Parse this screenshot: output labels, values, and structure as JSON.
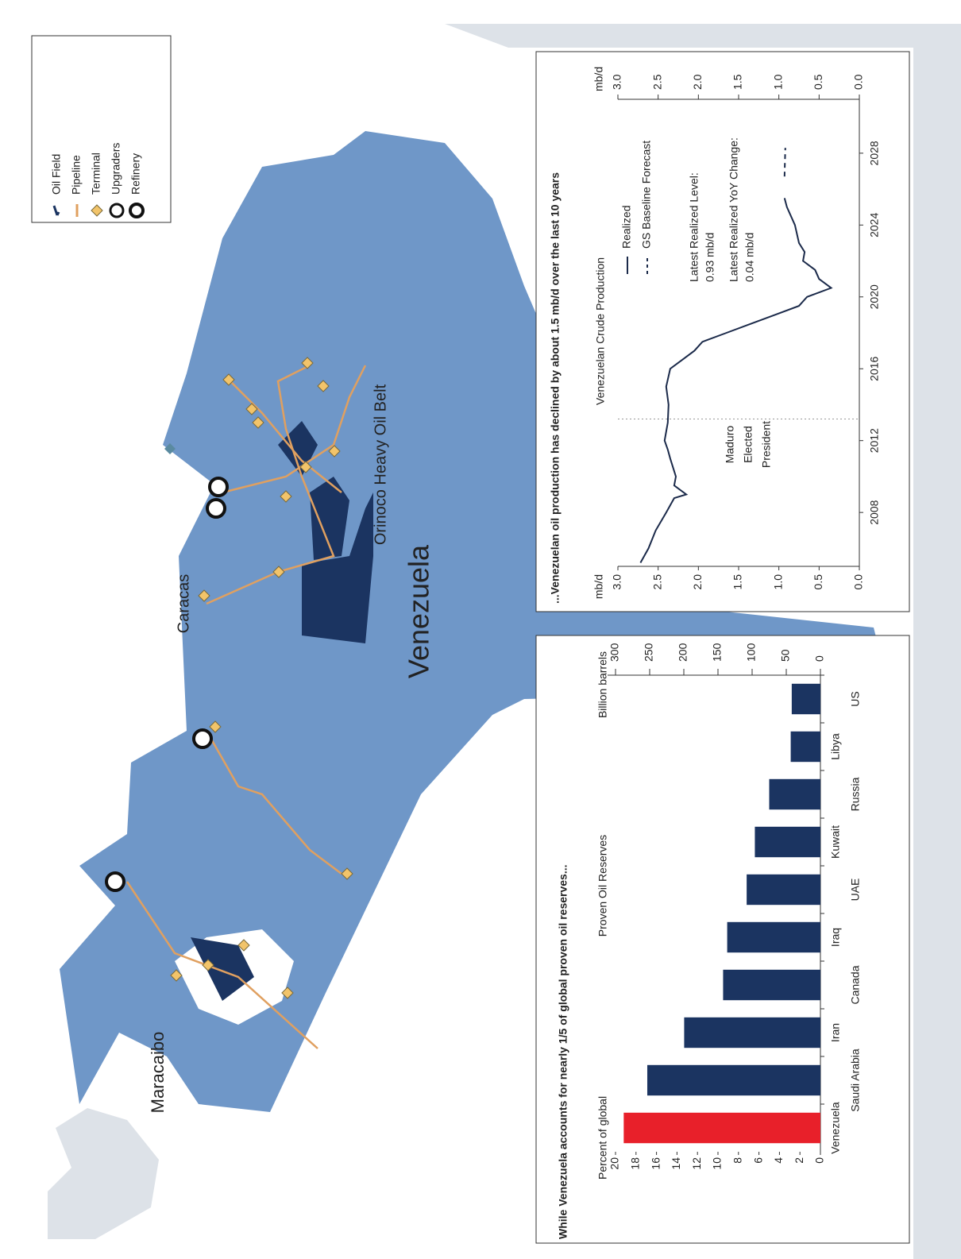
{
  "map": {
    "labels": [
      "Maracaibo",
      "Caracas",
      "Orinoco Heavy Oil Belt",
      "Venezuela"
    ],
    "legend": [
      "Oil Field",
      "Pipeline",
      "Terminal",
      "Upgraders",
      "Refinery"
    ]
  },
  "chart_data": [
    {
      "type": "bar",
      "title": "While Venezuela accounts for nearly 1/5 of global proven oil reserves...",
      "subtitle": "Proven Oil Reserves",
      "y_label": "Percent of global",
      "y2_label": "Billion barrels",
      "categories": [
        "Venezuela",
        "Saudi Arabia",
        "Iran",
        "Canada",
        "Iraq",
        "UAE",
        "Kuwait",
        "Russia",
        "Libya",
        "US"
      ],
      "values": [
        19.2,
        16.9,
        13.3,
        9.5,
        9.1,
        7.2,
        6.4,
        5.0,
        2.9,
        2.8
      ],
      "colors": [
        "#e8202a",
        "#1b3461",
        "#1b3461",
        "#1b3461",
        "#1b3461",
        "#1b3461",
        "#1b3461",
        "#1b3461",
        "#1b3461",
        "#1b3461"
      ],
      "ylim": [
        0,
        20
      ],
      "yticks": [
        0,
        2,
        4,
        6,
        8,
        10,
        12,
        14,
        16,
        18,
        20
      ],
      "y2lim": [
        0,
        300
      ],
      "y2ticks": [
        0,
        50,
        100,
        150,
        200,
        250,
        300
      ]
    },
    {
      "type": "line",
      "title": "...Venezuelan oil production has declined by about 1.5 mb/d over the last 10 years",
      "subtitle": "Venezuelan Crude Production",
      "y_label": "mb/d",
      "y2_label": "mb/d",
      "xlim": [
        2005,
        2031
      ],
      "xticks": [
        2008,
        2012,
        2016,
        2020,
        2024,
        2028
      ],
      "ylim": [
        0,
        3
      ],
      "yticks": [
        {
          "value": 0,
          "label": "0.0"
        },
        {
          "value": 0.5,
          "label": "0.5"
        },
        {
          "value": 1,
          "label": "1.0"
        },
        {
          "value": 1.5,
          "label": "1.5"
        },
        {
          "value": 2,
          "label": "2.0"
        },
        {
          "value": 2.5,
          "label": "2.5"
        },
        {
          "value": 3,
          "label": "3.0"
        }
      ],
      "y2lim": [
        0,
        3
      ],
      "y2ticks": [
        {
          "value": 0,
          "label": "0.0"
        },
        {
          "value": 0.5,
          "label": "0.5"
        },
        {
          "value": 1,
          "label": "1.0"
        },
        {
          "value": 1.5,
          "label": "1.5"
        },
        {
          "value": 2,
          "label": "2.0"
        },
        {
          "value": 2.5,
          "label": "2.5"
        },
        {
          "value": 3,
          "label": "3.0"
        }
      ],
      "series": [
        {
          "name": "Realized",
          "color": "#1b2a4a",
          "dash": false,
          "x": [
            2005.2,
            2006,
            2007,
            2008,
            2008.8,
            2009,
            2009.5,
            2010,
            2011,
            2011.5,
            2012,
            2013,
            2014,
            2015,
            2016,
            2016.5,
            2017,
            2017.5,
            2018,
            2018.5,
            2019,
            2019.5,
            2020,
            2020.5,
            2021,
            2021.5,
            2022,
            2022.5,
            2023,
            2024,
            2025,
            2025.5
          ],
          "values": [
            2.72,
            2.62,
            2.53,
            2.4,
            2.3,
            2.15,
            2.3,
            2.28,
            2.35,
            2.38,
            2.42,
            2.38,
            2.37,
            2.4,
            2.35,
            2.2,
            2.05,
            1.95,
            1.65,
            1.35,
            1.05,
            0.75,
            0.65,
            0.35,
            0.5,
            0.55,
            0.7,
            0.68,
            0.75,
            0.8,
            0.9,
            0.93
          ]
        },
        {
          "name": "GS Baseline Forecast",
          "color": "#1b2a4a",
          "dash": true,
          "x": [
            2026.7,
            2028.3
          ],
          "values": [
            0.93,
            0.92
          ]
        }
      ],
      "vline": {
        "x": 2013.2,
        "label": [
          "Maduro",
          "Elected",
          "President"
        ]
      },
      "annotations": [
        [
          "Latest Realized Level:",
          "0.93 mb/d"
        ],
        [
          "Latest Realized YoY Change:",
          "0.04 mb/d"
        ]
      ]
    }
  ]
}
